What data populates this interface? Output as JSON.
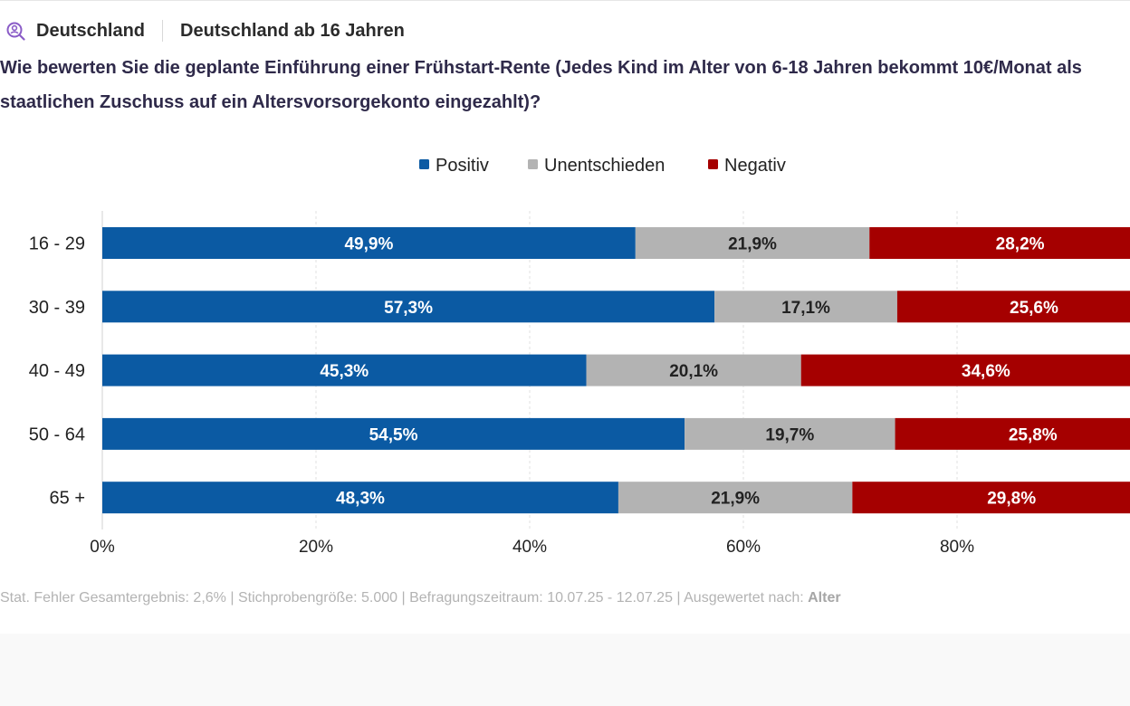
{
  "filters": {
    "country": "Deutschland",
    "population": "Deutschland ab 16 Jahren"
  },
  "question": {
    "line1": "Wie bewerten Sie die geplante Einführung einer Frühstart-Rente (Jedes Kind im Alter von 6-18 Jahren bekommt 10€/Monat als",
    "line2": "staatlichen Zuschuss auf ein Altersvorsorgekonto eingezahlt)?"
  },
  "footer": {
    "text": "Stat. Fehler Gesamtergebnis: 2,6% | Stichprobengröße: 5.000 | Befragungszeitraum: 10.07.25 - 12.07.25 | Ausgewertet nach: ",
    "evaluated_by": "Alter"
  },
  "colors": {
    "positive": "#0b5aa3",
    "neutral": "#b3b3b3",
    "negative": "#a50000",
    "icon": "#8a5cc7"
  },
  "chart_data": {
    "type": "bar",
    "orientation": "horizontal",
    "stacked": true,
    "categories": [
      "16 - 29",
      "30 - 39",
      "40 - 49",
      "50 - 64",
      "65 +"
    ],
    "series": [
      {
        "name": "Positiv",
        "values": [
          49.9,
          57.3,
          45.3,
          54.5,
          48.3
        ],
        "labels": [
          "49,9%",
          "57,3%",
          "45,3%",
          "54,5%",
          "48,3%"
        ],
        "color": "#0b5aa3",
        "label_color": "#ffffff"
      },
      {
        "name": "Unentschieden",
        "values": [
          21.9,
          17.1,
          20.1,
          19.7,
          21.9
        ],
        "labels": [
          "21,9%",
          "17,1%",
          "20,1%",
          "19,7%",
          "21,9%"
        ],
        "color": "#b3b3b3",
        "label_color": "#222222"
      },
      {
        "name": "Negativ",
        "values": [
          28.2,
          25.6,
          34.6,
          25.8,
          29.8
        ],
        "labels": [
          "28,2%",
          "25,6%",
          "34,6%",
          "25,8%",
          "29,8%"
        ],
        "color": "#a50000",
        "label_color": "#ffffff"
      }
    ],
    "xlim": [
      0,
      100
    ],
    "xticks": [
      0,
      20,
      40,
      60,
      80
    ],
    "xtick_labels": [
      "0%",
      "20%",
      "40%",
      "60%",
      "80%"
    ],
    "legend_position": "top-center",
    "grid": true
  }
}
